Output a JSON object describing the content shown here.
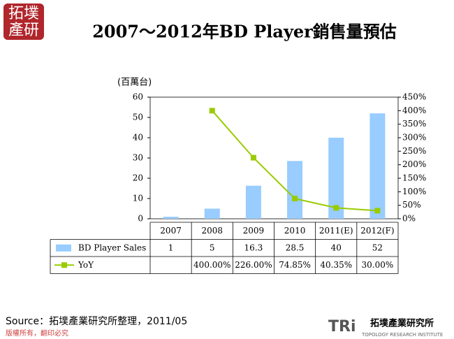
{
  "logo": [
    "拓墣",
    "產研"
  ],
  "source": "Source：拓墣產業研究所整理，2011/05",
  "copyright": "版權所有，翻印必究",
  "footer_logo": {
    "mark": "TRi",
    "name": "拓墣產業研究所",
    "english": "TOPOLOGY RESEARCH INSTITUTE"
  },
  "chart_data": {
    "type": "bar",
    "title": "2007～2012年BD Player銷售量預估",
    "y_label": "(百萬台)",
    "categories": [
      "2007",
      "2008",
      "2009",
      "2010",
      "2011(E)",
      "2012(F)"
    ],
    "series": [
      {
        "name": "BD Player Sales",
        "type": "bar",
        "color": "#99ccff",
        "values": [
          1,
          5,
          16.3,
          28.5,
          40,
          52
        ]
      },
      {
        "name": "YoY",
        "type": "line",
        "axis": "y2",
        "color": "#99cc00",
        "values": [
          null,
          400,
          226,
          74.85,
          40.35,
          30
        ],
        "value_labels": [
          null,
          "400.00%",
          "226.00%",
          "74.85%",
          "40.35%",
          "30.00%"
        ]
      }
    ],
    "ylim": [
      0,
      60
    ],
    "yticks": [
      0,
      10,
      20,
      30,
      40,
      50,
      60
    ],
    "y2lim": [
      0,
      450
    ],
    "y2ticks": [
      {
        "value": 0,
        "label": "0%"
      },
      {
        "value": 50,
        "label": "50%"
      },
      {
        "value": 100,
        "label": "100%"
      },
      {
        "value": 150,
        "label": "150%"
      },
      {
        "value": 200,
        "label": "200%"
      },
      {
        "value": 250,
        "label": "250%"
      },
      {
        "value": 300,
        "label": "300%"
      },
      {
        "value": 350,
        "label": "350%"
      },
      {
        "value": 400,
        "label": "400%"
      },
      {
        "value": 450,
        "label": "450%"
      }
    ],
    "grid": false,
    "data_table": true
  }
}
